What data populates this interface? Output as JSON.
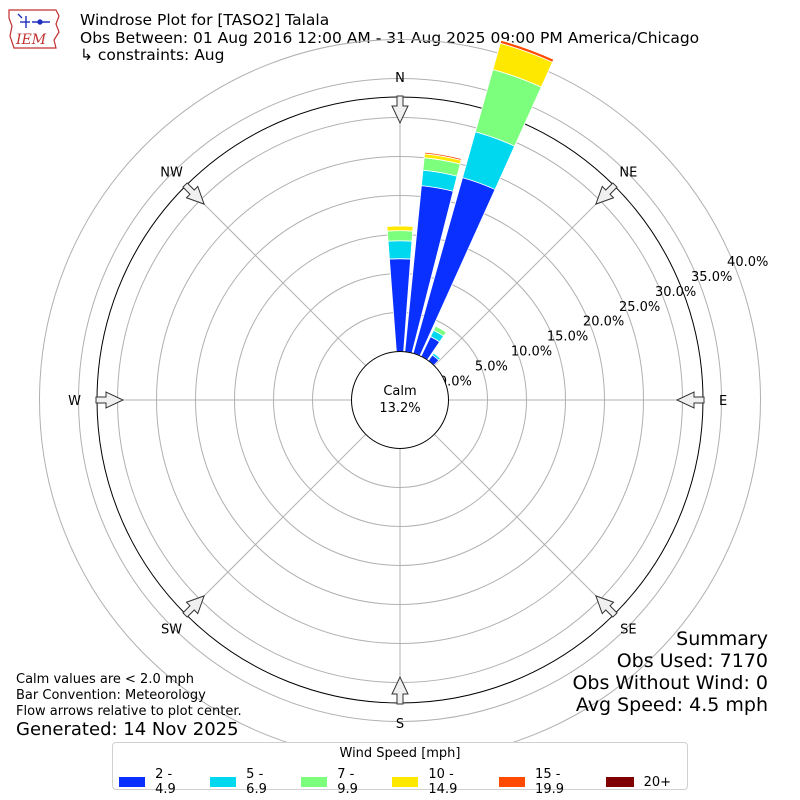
{
  "header": {
    "title": "Windrose Plot for [TASO2] Talala",
    "obs_between": "Obs Between: 01 Aug 2016 12:00 AM - 31 Aug 2025 09:00 PM America/Chicago",
    "constraints": "↳ constraints: Aug",
    "logo_text": "IEM"
  },
  "chart_data": {
    "type": "windrose",
    "directions": [
      "N",
      "NE",
      "E",
      "SE",
      "S",
      "SW",
      "W",
      "NW"
    ],
    "radial_ticks": [
      "0.0%",
      "5.0%",
      "10.0%",
      "15.0%",
      "20.0%",
      "25.0%",
      "30.0%",
      "35.0%",
      "40.0%"
    ],
    "rmax": 40,
    "calm_label": "Calm",
    "calm_value": "13.2%",
    "speed_bins": [
      {
        "name": "2 - 4.9",
        "color": "#0a30ff"
      },
      {
        "name": "5 - 6.9",
        "color": "#00d8f0"
      },
      {
        "name": "7 - 9.9",
        "color": "#7cff7c"
      },
      {
        "name": "10 - 14.9",
        "color": "#ffe800"
      },
      {
        "name": "15 - 19.9",
        "color": "#ff4a00"
      },
      {
        "name": "20+",
        "color": "#800000"
      }
    ],
    "bars": [
      {
        "direction_deg": 0,
        "values": [
          11.9,
          2.3,
          1.3,
          0.6,
          0.1,
          0.0
        ]
      },
      {
        "direction_deg": 10,
        "values": [
          21.4,
          2.0,
          1.6,
          0.5,
          0.2,
          0.0
        ]
      },
      {
        "direction_deg": 20,
        "values": [
          23.4,
          6.1,
          8.3,
          3.5,
          0.4,
          0.1
        ]
      },
      {
        "direction_deg": 30,
        "values": [
          2.8,
          0.9,
          0.6,
          0.1,
          0.0,
          0.0
        ]
      },
      {
        "direction_deg": 40,
        "values": [
          0.9,
          0.3,
          0.0,
          0.0,
          0.0,
          0.0
        ]
      }
    ],
    "legend_title": "Wind Speed [mph]"
  },
  "notes": [
    "Calm values are < 2.0 mph",
    "Bar Convention: Meteorology",
    "Flow arrows relative to plot center."
  ],
  "generated": "Generated: 14 Nov 2025",
  "summary": [
    "Summary",
    "Obs Used: 7170",
    "Obs Without Wind: 0",
    "Avg Speed: 4.5 mph"
  ]
}
